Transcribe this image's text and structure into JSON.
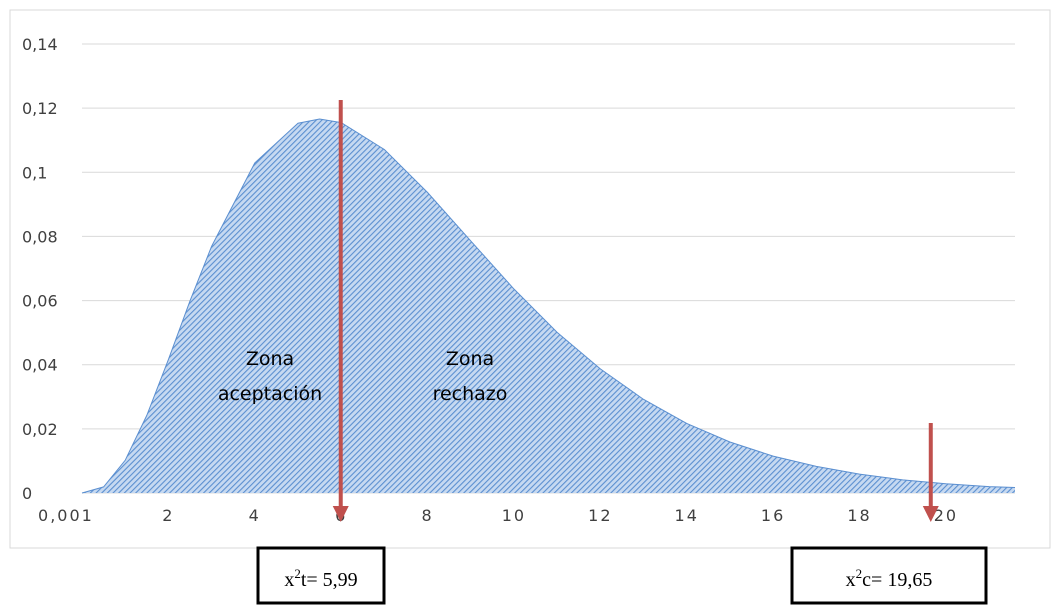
{
  "chart_data": {
    "type": "area",
    "x": [
      0,
      0.5,
      1,
      1.5,
      2,
      2.5,
      3,
      4,
      5,
      5.5,
      6,
      7,
      8,
      9,
      10,
      11,
      12,
      13,
      14,
      15,
      16,
      17,
      18,
      19,
      20,
      21,
      21.6
    ],
    "values": [
      0,
      0.0019,
      0.0102,
      0.0242,
      0.0416,
      0.0599,
      0.0769,
      0.1029,
      0.1153,
      0.1166,
      0.1155,
      0.1071,
      0.0937,
      0.0786,
      0.0636,
      0.0501,
      0.0387,
      0.0292,
      0.0217,
      0.0159,
      0.0115,
      0.0083,
      0.0059,
      0.0041,
      0.0029,
      0.002,
      0.0017
    ],
    "color": "#5b8fd0",
    "xlim": [
      0,
      21.6
    ],
    "xticks": [
      {
        "value": 0.001,
        "label": "0,001"
      },
      2,
      4,
      6,
      8,
      10,
      12,
      14,
      16,
      18,
      20
    ],
    "ylim": [
      0,
      0.14
    ],
    "yticks": [
      0,
      {
        "value": 0.02,
        "label": "0,02"
      },
      {
        "value": 0.04,
        "label": "0,04"
      },
      {
        "value": 0.06,
        "label": "0,06"
      },
      {
        "value": 0.08,
        "label": "0,08"
      },
      {
        "value": 0.1,
        "label": "0,1"
      },
      {
        "value": 0.12,
        "label": "0,12"
      },
      {
        "value": 0.14,
        "label": "0,14"
      }
    ],
    "grid": true,
    "annotations": [
      {
        "lines": [
          "Zona",
          "aceptación"
        ]
      },
      {
        "lines": [
          "Zona",
          "rechazo"
        ]
      }
    ],
    "markers": [
      {
        "x": 5.99,
        "color": "#c0504d",
        "label": {
          "base": "x",
          "sup": "2",
          "rest": "t= 5,99"
        }
      },
      {
        "x": 19.65,
        "color": "#c0504d",
        "label": {
          "base": "x",
          "sup": "2",
          "rest": "c= 19,65"
        }
      }
    ]
  }
}
